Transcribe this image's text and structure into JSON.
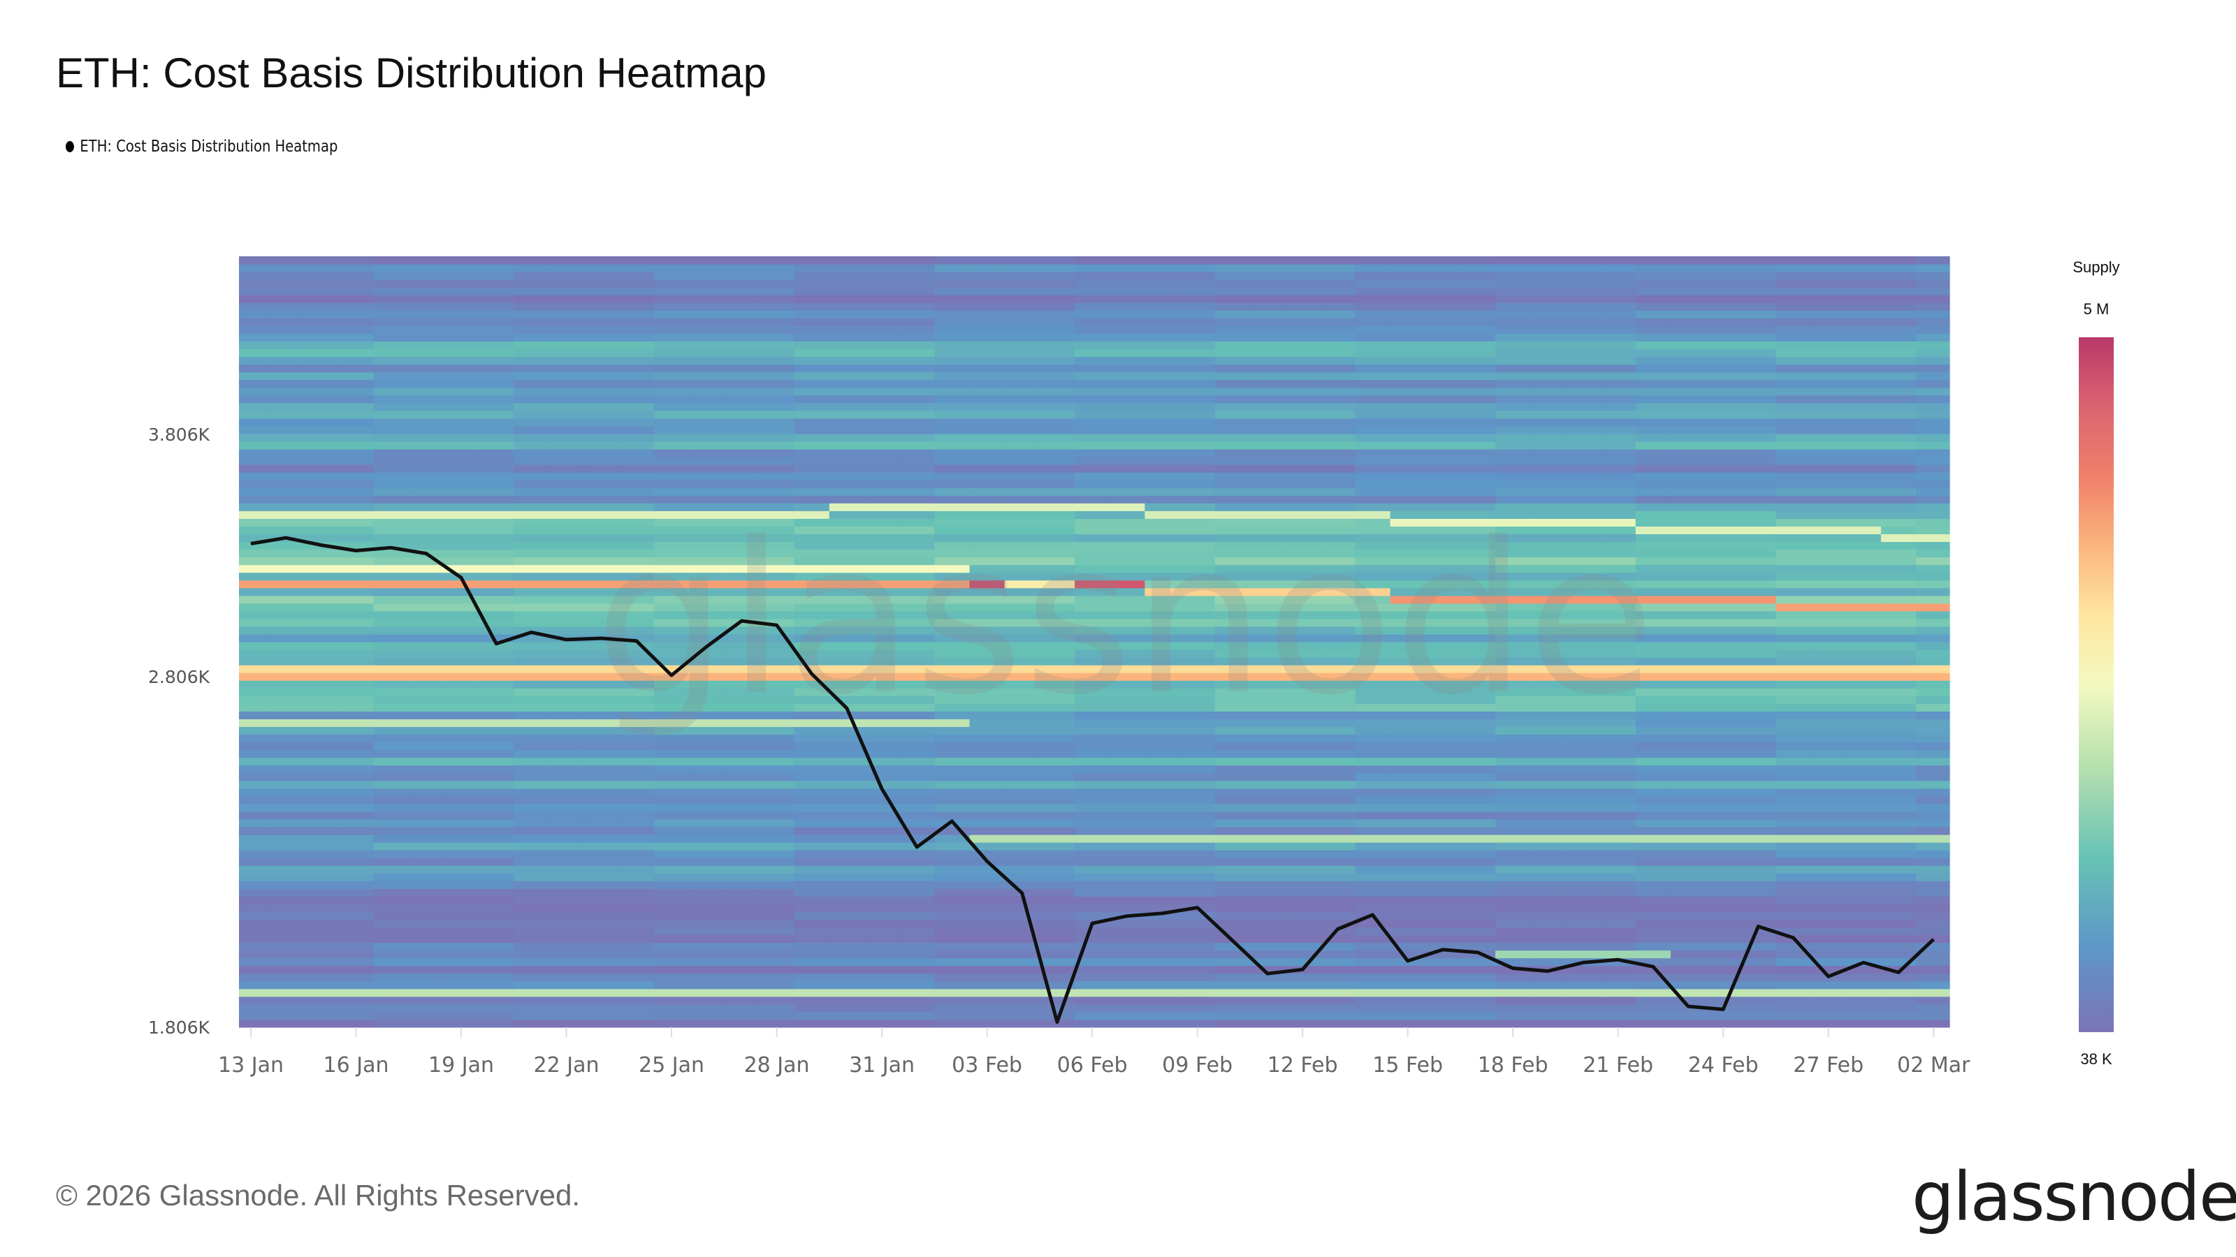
{
  "title": "ETH: Cost Basis Distribution Heatmap",
  "legend_label": "ETH: Cost Basis Distribution Heatmap",
  "footer": "© 2026 Glassnode. All Rights Reserved.",
  "logo_text": "glassnode",
  "watermark": "glassnode",
  "colorbar": {
    "title": "Supply",
    "max_label": "5 M",
    "min_label": "38 K",
    "stops": [
      [
        0,
        "#7b74b5"
      ],
      [
        0.12,
        "#5e96c8"
      ],
      [
        0.25,
        "#66c2b5"
      ],
      [
        0.38,
        "#b6e0af"
      ],
      [
        0.5,
        "#f3f9c0"
      ],
      [
        0.6,
        "#fee69f"
      ],
      [
        0.7,
        "#fbb57c"
      ],
      [
        0.8,
        "#f0806b"
      ],
      [
        0.9,
        "#dc6470"
      ],
      [
        1,
        "#b8386a"
      ]
    ]
  },
  "chart_data": {
    "type": "heatmap",
    "title": "ETH: Cost Basis Distribution Heatmap",
    "y_scale": "log",
    "ylim": [
      1806,
      4760
    ],
    "y_ticks": [
      "3.806K",
      "2.806K",
      "1.806K"
    ],
    "y_tick_values": [
      3806,
      2806,
      1806
    ],
    "x_ticks": [
      "13 Jan",
      "16 Jan",
      "19 Jan",
      "22 Jan",
      "25 Jan",
      "28 Jan",
      "31 Jan",
      "03 Feb",
      "06 Feb",
      "09 Feb",
      "12 Feb",
      "15 Feb",
      "18 Feb",
      "21 Feb",
      "24 Feb",
      "27 Feb",
      "02 Mar"
    ],
    "dates": [
      "13 Jan",
      "14 Jan",
      "15 Jan",
      "16 Jan",
      "17 Jan",
      "18 Jan",
      "19 Jan",
      "20 Jan",
      "21 Jan",
      "22 Jan",
      "23 Jan",
      "24 Jan",
      "25 Jan",
      "26 Jan",
      "27 Jan",
      "28 Jan",
      "29 Jan",
      "30 Jan",
      "31 Jan",
      "01 Feb",
      "02 Feb",
      "03 Feb",
      "04 Feb",
      "05 Feb",
      "06 Feb",
      "07 Feb",
      "08 Feb",
      "09 Feb",
      "10 Feb",
      "11 Feb",
      "12 Feb",
      "13 Feb",
      "14 Feb",
      "15 Feb",
      "16 Feb",
      "17 Feb",
      "18 Feb",
      "19 Feb",
      "20 Feb",
      "21 Feb",
      "22 Feb",
      "23 Feb",
      "24 Feb",
      "25 Feb",
      "26 Feb",
      "27 Feb",
      "28 Feb",
      "01 Mar",
      "02 Mar"
    ],
    "price_series": [
      3317,
      3341,
      3311,
      3288,
      3300,
      3276,
      3178,
      2925,
      2967,
      2940,
      2945,
      2935,
      2811,
      2914,
      3010,
      2994,
      2816,
      2697,
      2437,
      2265,
      2340,
      2225,
      2138,
      1818,
      2058,
      2077,
      2084,
      2099,
      2014,
      1932,
      1942,
      2043,
      2080,
      1963,
      1991,
      1984,
      1945,
      1938,
      1959,
      1966,
      1949,
      1854,
      1847,
      2050,
      2021,
      1925,
      1959,
      1935,
      2017
    ],
    "colorscale_range": [
      "38 K",
      "5 M"
    ],
    "background_supply_level": [
      {
        "price_from": 4300,
        "price_to": 4760,
        "level": 0.05
      },
      {
        "price_from": 3700,
        "price_to": 4300,
        "level": 0.15
      },
      {
        "price_from": 3500,
        "price_to": 3700,
        "level": 0.12
      },
      {
        "price_from": 3300,
        "price_to": 3500,
        "level": 0.22
      },
      {
        "price_from": 2950,
        "price_to": 3300,
        "level": 0.25
      },
      {
        "price_from": 2700,
        "price_to": 2950,
        "level": 0.2
      },
      {
        "price_from": 2400,
        "price_to": 2700,
        "level": 0.15
      },
      {
        "price_from": 2150,
        "price_to": 2400,
        "level": 0.11
      },
      {
        "price_from": 1806,
        "price_to": 2150,
        "level": 0.04
      }
    ],
    "bands": [
      {
        "price": 3451,
        "start": "13 Jan",
        "end": "29 Jan",
        "level": 0.46
      },
      {
        "price": 3474,
        "start": "30 Jan",
        "end": "07 Feb",
        "level": 0.46
      },
      {
        "price": 3445,
        "start": "08 Feb",
        "end": "14 Feb",
        "level": 0.44
      },
      {
        "price": 3408,
        "start": "15 Feb",
        "end": "21 Feb",
        "level": 0.48
      },
      {
        "price": 3371,
        "start": "22 Feb",
        "end": "28 Feb",
        "level": 0.46
      },
      {
        "price": 3341,
        "start": "01 Mar",
        "end": "02 Mar",
        "level": 0.46
      },
      {
        "price": 3223,
        "start": "13 Jan",
        "end": "02 Feb",
        "level": 0.5
      },
      {
        "price": 3161,
        "start": "13 Jan",
        "end": "02 Feb",
        "level": 0.74
      },
      {
        "price": 3161,
        "start": "03 Feb",
        "end": "03 Feb",
        "level": 0.95
      },
      {
        "price": 3150,
        "start": "04 Feb",
        "end": "05 Feb",
        "level": 0.56
      },
      {
        "price": 3140,
        "start": "06 Feb",
        "end": "07 Feb",
        "level": 0.93
      },
      {
        "price": 3123,
        "start": "08 Feb",
        "end": "14 Feb",
        "level": 0.64
      },
      {
        "price": 3092,
        "start": "15 Feb",
        "end": "25 Feb",
        "level": 0.76
      },
      {
        "price": 3058,
        "start": "26 Feb",
        "end": "02 Mar",
        "level": 0.74
      },
      {
        "price": 2840,
        "start": "13 Jan",
        "end": "02 Mar",
        "level": 0.62
      },
      {
        "price": 2815,
        "start": "13 Jan",
        "end": "02 Mar",
        "level": 0.7
      },
      {
        "price": 2644,
        "start": "13 Jan",
        "end": "02 Feb",
        "level": 0.4
      },
      {
        "price": 2290,
        "start": "03 Feb",
        "end": "02 Mar",
        "level": 0.38
      },
      {
        "price": 1978,
        "start": "18 Feb",
        "end": "22 Feb",
        "level": 0.34
      },
      {
        "price": 1890,
        "start": "13 Jan",
        "end": "02 Mar",
        "level": 0.4
      }
    ]
  }
}
